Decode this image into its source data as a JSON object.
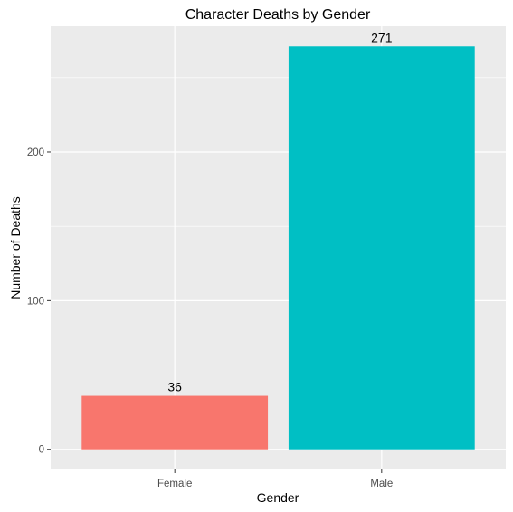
{
  "chart_data": {
    "type": "bar",
    "title": "Character Deaths by Gender",
    "xlabel": "Gender",
    "ylabel": "Number of Deaths",
    "categories": [
      "Female",
      "Male"
    ],
    "values": [
      36,
      271
    ],
    "data_labels": [
      "36",
      "271"
    ],
    "bar_colors": [
      "#F8766D",
      "#00BFC4"
    ],
    "ylim": [
      -13.55,
      284.55
    ],
    "yticks": [
      0,
      100,
      200
    ],
    "ytick_labels": [
      "0",
      "100",
      "200"
    ],
    "grid": true,
    "legend": "none",
    "panel_background": "#EBEBEB",
    "gridline_color": "#FFFFFF"
  }
}
